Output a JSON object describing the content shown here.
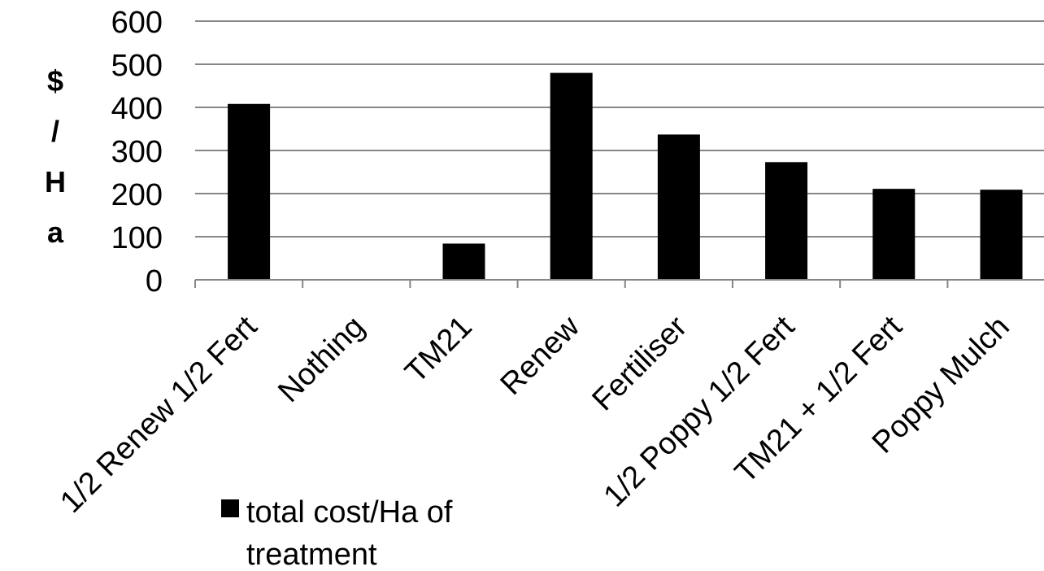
{
  "chart_data": {
    "type": "bar",
    "title": "",
    "xlabel": "",
    "ylabel": "$/Ha",
    "categories": [
      "1/2 Renew 1/2 Fert",
      "Nothing",
      "TM21",
      "Renew",
      "Fertiliser",
      "1/2 Poppy 1/2 Fert",
      "TM21 + 1/2 Fert",
      "Poppy Mulch"
    ],
    "series": [
      {
        "name": "total cost/Ha of treatment",
        "values": [
          408,
          0,
          84,
          480,
          337,
          273,
          211,
          209
        ],
        "color": "#000000"
      }
    ],
    "ylim": [
      0,
      600
    ],
    "yticks": [
      0,
      100,
      200,
      300,
      400,
      500,
      600
    ],
    "grid": true,
    "gridline_color": "#868686",
    "legend_position": "bottom-left"
  }
}
